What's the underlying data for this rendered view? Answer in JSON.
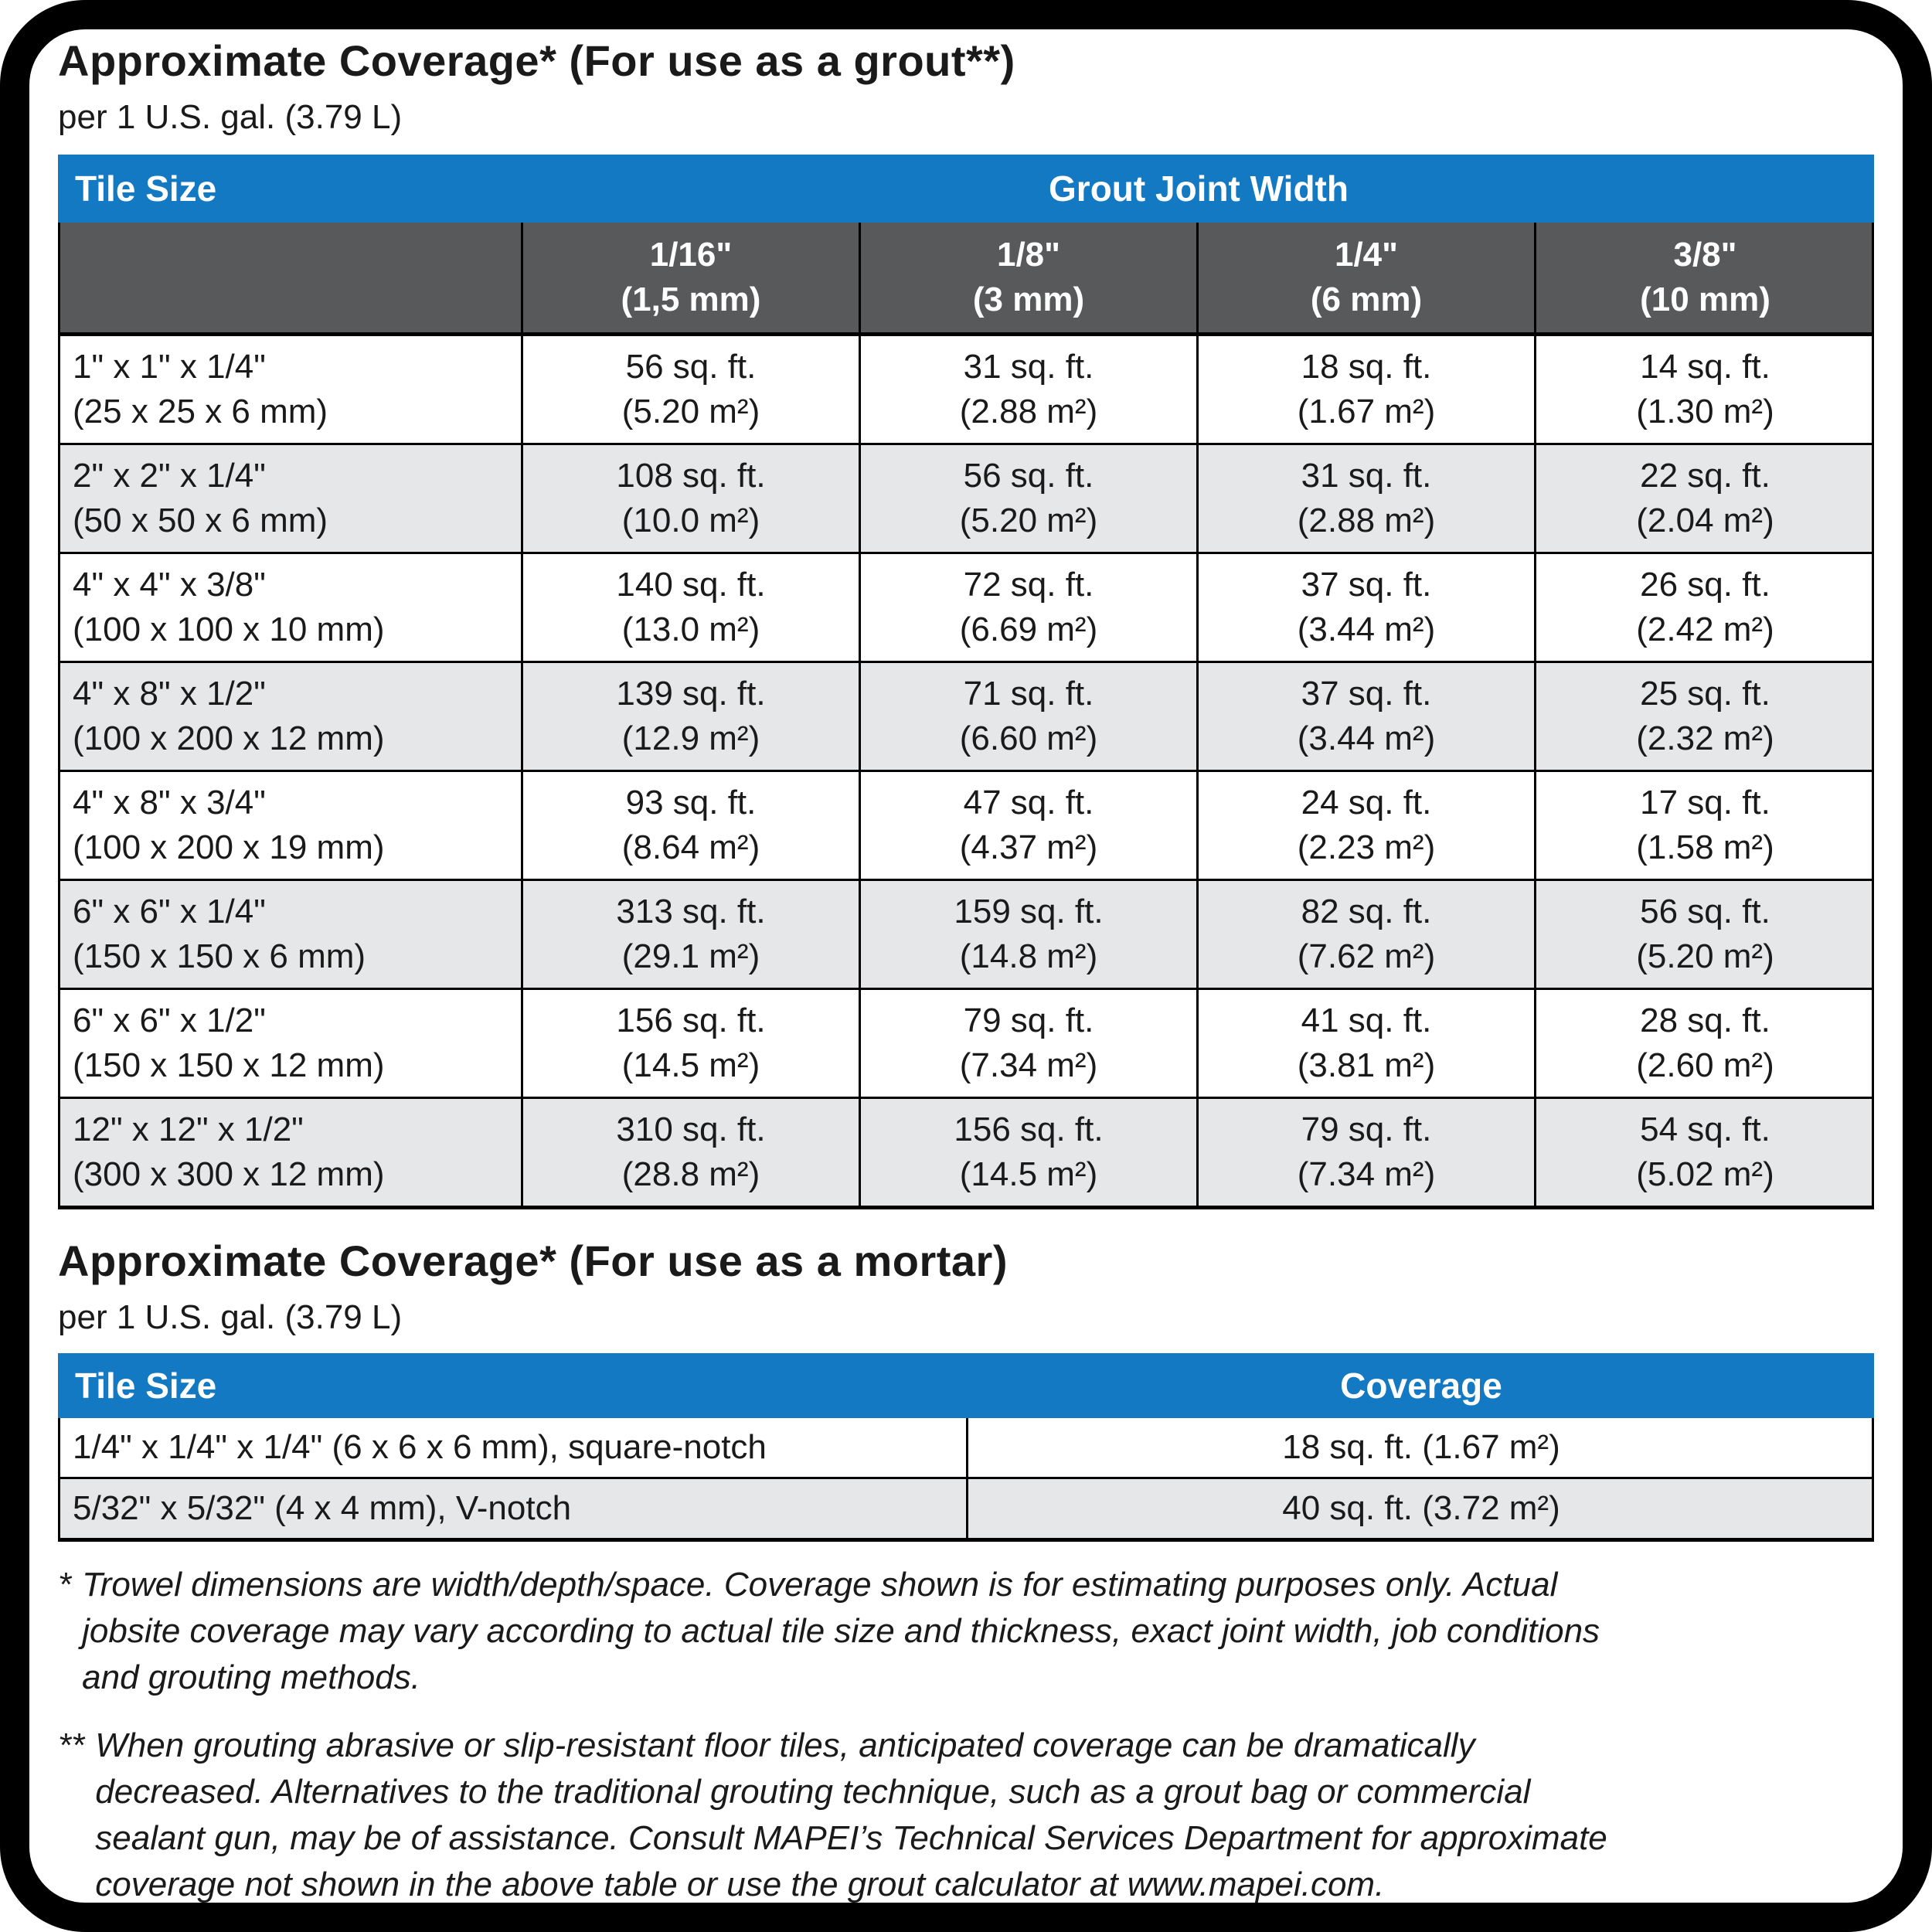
{
  "colors": {
    "header_blue": "#1279c2",
    "subheader_gray": "#58595b",
    "row_alt_gray": "#e6e7e8",
    "line_black": "#000000",
    "text_black": "#1a1a1a"
  },
  "grout": {
    "title": "Approximate Coverage*  (For use as a grout**)",
    "subtitle": "per 1 U.S. gal. (3.79 L)",
    "table": {
      "tile_size_header": "Tile Size",
      "group_header": "Grout Joint Width",
      "joint_columns": [
        [
          "1/16\"",
          "(1,5 mm)"
        ],
        [
          "1/8\"",
          "(3 mm)"
        ],
        [
          "1/4\"",
          "(6 mm)"
        ],
        [
          "3/8\"",
          "(10 mm)"
        ]
      ],
      "rows": [
        {
          "tile": [
            "1\" x 1\" x 1/4\"",
            "(25 x 25 x 6 mm)"
          ],
          "c1": [
            "56 sq. ft.",
            "(5.20 m²)"
          ],
          "c2": [
            "31 sq. ft.",
            "(2.88 m²)"
          ],
          "c3": [
            "18 sq. ft.",
            "(1.67 m²)"
          ],
          "c4": [
            "14 sq. ft.",
            "(1.30 m²)"
          ]
        },
        {
          "tile": [
            "2\" x 2\" x 1/4\"",
            "(50 x 50 x 6 mm)"
          ],
          "c1": [
            "108 sq. ft.",
            "(10.0 m²)"
          ],
          "c2": [
            "56 sq. ft.",
            "(5.20 m²)"
          ],
          "c3": [
            "31 sq. ft.",
            "(2.88 m²)"
          ],
          "c4": [
            "22 sq. ft.",
            "(2.04 m²)"
          ]
        },
        {
          "tile": [
            "4\" x 4\" x 3/8\"",
            "(100 x 100 x 10 mm)"
          ],
          "c1": [
            "140 sq. ft.",
            "(13.0 m²)"
          ],
          "c2": [
            "72 sq. ft.",
            "(6.69 m²)"
          ],
          "c3": [
            "37 sq. ft.",
            "(3.44 m²)"
          ],
          "c4": [
            "26 sq. ft.",
            "(2.42 m²)"
          ]
        },
        {
          "tile": [
            "4\" x 8\" x 1/2\"",
            "(100 x 200 x 12 mm)"
          ],
          "c1": [
            "139 sq. ft.",
            "(12.9 m²)"
          ],
          "c2": [
            "71 sq. ft.",
            "(6.60 m²)"
          ],
          "c3": [
            "37 sq. ft.",
            "(3.44 m²)"
          ],
          "c4": [
            "25 sq. ft.",
            "(2.32 m²)"
          ]
        },
        {
          "tile": [
            "4\" x 8\" x 3/4\"",
            "(100 x 200 x 19 mm)"
          ],
          "c1": [
            "93 sq. ft.",
            "(8.64 m²)"
          ],
          "c2": [
            "47 sq. ft.",
            "(4.37 m²)"
          ],
          "c3": [
            "24 sq. ft.",
            "(2.23 m²)"
          ],
          "c4": [
            "17 sq. ft.",
            "(1.58 m²)"
          ]
        },
        {
          "tile": [
            "6\" x 6\" x 1/4\"",
            "(150 x 150 x 6 mm)"
          ],
          "c1": [
            "313 sq. ft.",
            "(29.1 m²)"
          ],
          "c2": [
            "159 sq. ft.",
            "(14.8 m²)"
          ],
          "c3": [
            "82 sq. ft.",
            "(7.62 m²)"
          ],
          "c4": [
            "56 sq. ft.",
            "(5.20 m²)"
          ]
        },
        {
          "tile": [
            "6\" x 6\" x 1/2\"",
            "(150 x 150 x 12 mm)"
          ],
          "c1": [
            "156 sq. ft.",
            "(14.5 m²)"
          ],
          "c2": [
            "79 sq. ft.",
            "(7.34 m²)"
          ],
          "c3": [
            "41 sq. ft.",
            "(3.81 m²)"
          ],
          "c4": [
            "28 sq. ft.",
            "(2.60 m²)"
          ]
        },
        {
          "tile": [
            "12\" x 12\" x 1/2\"",
            "(300 x 300 x 12 mm)"
          ],
          "c1": [
            "310 sq. ft.",
            "(28.8 m²)"
          ],
          "c2": [
            "156 sq. ft.",
            "(14.5 m²)"
          ],
          "c3": [
            "79 sq. ft.",
            "(7.34 m²)"
          ],
          "c4": [
            "54 sq. ft.",
            "(5.02 m²)"
          ]
        }
      ]
    }
  },
  "mortar": {
    "title": "Approximate Coverage*  (For use as a mortar)",
    "subtitle": "per 1 U.S. gal. (3.79 L)",
    "table": {
      "tile_size_header": "Tile Size",
      "coverage_header": "Coverage",
      "rows": [
        {
          "tile": "1/4\" x 1/4\" x 1/4\" (6 x 6 x 6 mm), square-notch",
          "coverage": "18 sq. ft. (1.67 m²)"
        },
        {
          "tile": "5/32\" x 5/32\" (4 x 4 mm), V-notch",
          "coverage": "40 sq. ft. (3.72 m²)"
        }
      ]
    }
  },
  "footnotes": [
    {
      "marker": "*",
      "lines": [
        "Trowel dimensions are width/depth/space. Coverage shown is for estimating purposes only. Actual",
        "jobsite coverage may vary according to actual tile size and thickness, exact joint width, job conditions",
        "and grouting methods."
      ]
    },
    {
      "marker": "**",
      "lines": [
        "When grouting abrasive or slip-resistant floor tiles, anticipated coverage can be dramatically",
        "decreased. Alternatives to the traditional grouting technique, such as a grout bag or commercial",
        "sealant gun, may be of assistance. Consult MAPEI’s Technical Services Department for approximate",
        "coverage not shown in the above table or use the grout calculator at www.mapei.com."
      ]
    }
  ]
}
